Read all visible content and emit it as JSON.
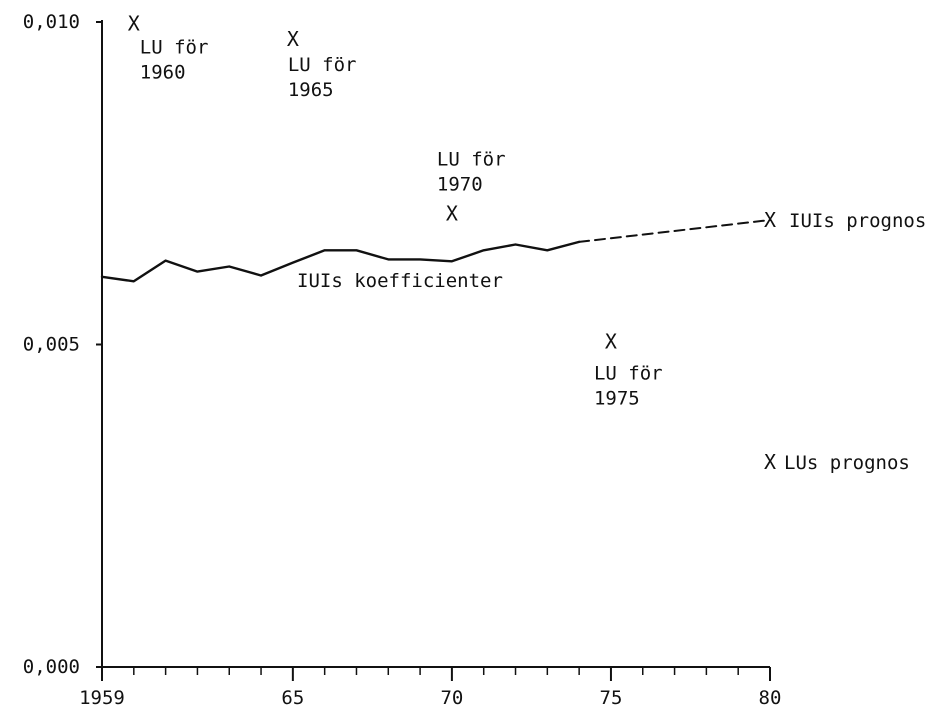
{
  "chart_data": {
    "type": "line",
    "title": "",
    "xlabel": "",
    "ylabel": "",
    "xlim": [
      1959,
      1980
    ],
    "ylim": [
      0.0,
      0.01
    ],
    "x_ticks": [
      {
        "value": 1959,
        "label": "1959"
      },
      {
        "value": 1965,
        "label": "65"
      },
      {
        "value": 1970,
        "label": "70"
      },
      {
        "value": 1975,
        "label": "75"
      },
      {
        "value": 1980,
        "label": "80"
      }
    ],
    "x_minor_ticks": [
      1960,
      1961,
      1962,
      1963,
      1964,
      1966,
      1967,
      1968,
      1969,
      1971,
      1972,
      1973,
      1974,
      1976,
      1977,
      1978,
      1979
    ],
    "y_ticks": [
      {
        "value": 0.0,
        "label": "0,000"
      },
      {
        "value": 0.005,
        "label": "0,005"
      },
      {
        "value": 0.01,
        "label": "0,010"
      }
    ],
    "grid": false,
    "series": [
      {
        "name": "IUIs koefficienter",
        "style": "solid",
        "x": [
          1959,
          1960,
          1961,
          1962,
          1963,
          1964,
          1965,
          1966,
          1967,
          1968,
          1969,
          1970,
          1971,
          1972,
          1973,
          1974
        ],
        "y": [
          0.00605,
          0.00598,
          0.0063,
          0.00613,
          0.00621,
          0.00607,
          0.00627,
          0.00646,
          0.00646,
          0.00632,
          0.00632,
          0.00629,
          0.00646,
          0.00655,
          0.00646,
          0.00659
        ]
      },
      {
        "name": "IUIs prognos",
        "style": "dashed",
        "x": [
          1974,
          1980
        ],
        "y": [
          0.00659,
          0.00693
        ]
      }
    ],
    "points": [
      {
        "x": 1960,
        "y": 0.00998,
        "label_lines": [
          "LU för",
          "1960"
        ]
      },
      {
        "x": 1965,
        "y": 0.00974,
        "label_lines": [
          "LU för",
          "1965"
        ]
      },
      {
        "x": 1970,
        "y": 0.00703,
        "label_lines": [
          "LU för",
          "1970"
        ]
      },
      {
        "x": 1975,
        "y": 0.00505,
        "label_lines": [
          "LU för",
          "1975"
        ]
      },
      {
        "x": 1980,
        "y": 0.00693,
        "label_lines": [
          "IUIs prognos"
        ]
      },
      {
        "x": 1980,
        "y": 0.00318,
        "label_lines": [
          "LUs prognos"
        ]
      }
    ],
    "series_label": "IUIs koefficienter",
    "marker_glyph": "X",
    "line_color": "#111111"
  }
}
